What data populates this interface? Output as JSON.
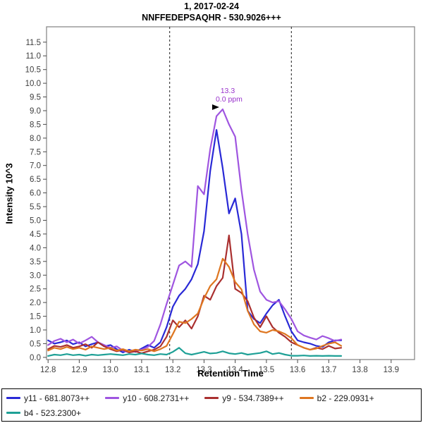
{
  "title": {
    "line1": "1, 2017-02-24",
    "line2": "NNFFEDEPSAQHR - 530.9026+++"
  },
  "chart_data": {
    "type": "line",
    "title": "1, 2017-02-24 NNFFEDEPSAQHR - 530.9026+++",
    "xlabel": "Retention Time",
    "ylabel": "Intensity 10^3",
    "xlim": [
      12.795,
      13.975
    ],
    "ylim": [
      -0.08,
      12.06
    ],
    "x_ticks": [
      12.8,
      12.9,
      13.0,
      13.1,
      13.2,
      13.3,
      13.4,
      13.5,
      13.6,
      13.7,
      13.8,
      13.9
    ],
    "y_ticks": [
      0.0,
      0.5,
      1.0,
      1.5,
      2.0,
      2.5,
      3.0,
      3.5,
      4.0,
      4.5,
      5.0,
      5.5,
      6.0,
      6.5,
      7.0,
      7.5,
      8.0,
      8.5,
      9.0,
      9.5,
      10.0,
      10.5,
      11.0,
      11.5
    ],
    "grid": false,
    "legend_position": "bottom",
    "peak_boundaries": [
      13.19,
      13.58
    ],
    "annotation": {
      "rt": "13.3",
      "ppm": "0.0 ppm",
      "at_x": 13.36,
      "at_y": 9.05,
      "color": "#9933cc"
    },
    "x": [
      12.8,
      12.82,
      12.84,
      12.86,
      12.88,
      12.9,
      12.92,
      12.94,
      12.96,
      12.98,
      13.0,
      13.02,
      13.04,
      13.06,
      13.08,
      13.1,
      13.12,
      13.14,
      13.16,
      13.18,
      13.2,
      13.22,
      13.24,
      13.26,
      13.28,
      13.3,
      13.32,
      13.34,
      13.36,
      13.38,
      13.4,
      13.42,
      13.44,
      13.46,
      13.48,
      13.5,
      13.52,
      13.54,
      13.56,
      13.58,
      13.6,
      13.62,
      13.64,
      13.66,
      13.68,
      13.7,
      13.72,
      13.74
    ],
    "series": [
      {
        "name": "y11 - 681.8073++",
        "color": "#2929d6",
        "values": [
          0.62,
          0.5,
          0.55,
          0.62,
          0.48,
          0.55,
          0.4,
          0.48,
          0.55,
          0.4,
          0.45,
          0.3,
          0.18,
          0.28,
          0.2,
          0.32,
          0.45,
          0.35,
          0.55,
          1.1,
          1.85,
          2.25,
          2.5,
          2.85,
          3.4,
          4.6,
          6.8,
          8.3,
          6.9,
          5.25,
          5.8,
          4.5,
          1.7,
          1.4,
          1.25,
          1.6,
          1.9,
          2.1,
          1.5,
          0.95,
          0.62,
          0.55,
          0.5,
          0.42,
          0.38,
          0.55,
          0.62,
          0.62
        ]
      },
      {
        "name": "y10 - 608.2731++",
        "color": "#9f55e0",
        "values": [
          0.45,
          0.6,
          0.68,
          0.55,
          0.65,
          0.5,
          0.62,
          0.75,
          0.55,
          0.45,
          0.35,
          0.4,
          0.25,
          0.18,
          0.22,
          0.28,
          0.38,
          0.6,
          1.2,
          1.95,
          2.65,
          3.35,
          3.5,
          3.3,
          6.25,
          5.95,
          7.6,
          8.8,
          9.05,
          8.5,
          8.05,
          6.1,
          4.5,
          3.2,
          2.4,
          2.1,
          2.0,
          2.05,
          1.75,
          1.4,
          0.95,
          0.8,
          0.72,
          0.65,
          0.78,
          0.7,
          0.6,
          0.65
        ]
      },
      {
        "name": "y9 - 534.7389++",
        "color": "#aa3030",
        "values": [
          0.3,
          0.42,
          0.38,
          0.45,
          0.35,
          0.4,
          0.48,
          0.35,
          0.55,
          0.4,
          0.3,
          0.22,
          0.28,
          0.18,
          0.22,
          0.15,
          0.22,
          0.28,
          0.4,
          0.75,
          1.35,
          1.1,
          1.35,
          1.05,
          1.5,
          2.25,
          2.1,
          2.6,
          2.9,
          4.45,
          2.5,
          2.35,
          2.05,
          1.45,
          1.1,
          1.5,
          1.1,
          0.9,
          0.75,
          0.55,
          0.45,
          0.35,
          0.28,
          0.35,
          0.3,
          0.42,
          0.32,
          0.35
        ]
      },
      {
        "name": "b2 - 229.0931+",
        "color": "#de7620",
        "values": [
          0.25,
          0.35,
          0.3,
          0.38,
          0.3,
          0.35,
          0.28,
          0.4,
          0.35,
          0.3,
          0.35,
          0.25,
          0.3,
          0.22,
          0.28,
          0.25,
          0.3,
          0.22,
          0.3,
          0.42,
          0.85,
          1.3,
          1.25,
          1.4,
          1.6,
          2.15,
          2.6,
          2.85,
          3.6,
          3.3,
          2.75,
          2.48,
          1.7,
          1.2,
          0.95,
          0.9,
          1.0,
          0.95,
          0.85,
          0.7,
          0.45,
          0.35,
          0.28,
          0.32,
          0.42,
          0.5,
          0.55,
          0.42
        ]
      },
      {
        "name": "b4 - 523.2300+",
        "color": "#1ea096",
        "values": [
          0.05,
          0.1,
          0.08,
          0.12,
          0.08,
          0.1,
          0.06,
          0.1,
          0.08,
          0.1,
          0.12,
          0.1,
          0.08,
          0.12,
          0.1,
          0.14,
          0.1,
          0.08,
          0.12,
          0.1,
          0.2,
          0.35,
          0.15,
          0.1,
          0.15,
          0.2,
          0.14,
          0.16,
          0.22,
          0.15,
          0.12,
          0.16,
          0.1,
          0.13,
          0.16,
          0.22,
          0.12,
          0.16,
          0.1,
          0.06,
          0.06,
          0.07,
          0.05,
          0.06,
          0.05,
          0.06,
          0.05,
          0.05
        ]
      }
    ]
  },
  "legend": {
    "rows": 2
  }
}
